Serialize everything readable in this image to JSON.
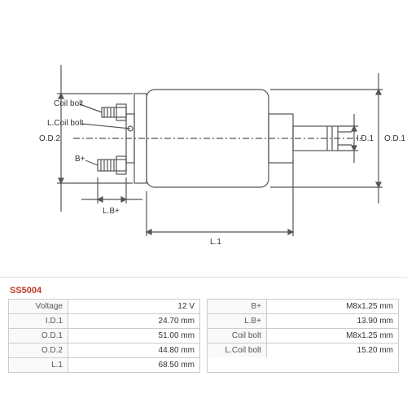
{
  "partNumber": "SS5004",
  "diagram": {
    "labels": {
      "coilBolt": "Coil bolt",
      "lCoilBolt": "L.Coil bolt",
      "bPlus": "B+",
      "lbPlus": "L.B+",
      "l1": "L.1",
      "od1": "O.D.1",
      "od2": "O.D.2",
      "id1": "I.D.1"
    },
    "stroke": "#555555",
    "strokeWidth": 1.2,
    "fill": "#ffffff"
  },
  "specs": {
    "left": [
      {
        "label": "Voltage",
        "value": "12 V"
      },
      {
        "label": "I.D.1",
        "value": "24.70 mm"
      },
      {
        "label": "O.D.1",
        "value": "51.00 mm"
      },
      {
        "label": "O.D.2",
        "value": "44.80 mm"
      },
      {
        "label": "L.1",
        "value": "68.50 mm"
      }
    ],
    "right": [
      {
        "label": "B+",
        "value": "M8x1.25 mm"
      },
      {
        "label": "L.B+",
        "value": "13.90 mm"
      },
      {
        "label": "Coil bolt",
        "value": "M8x1.25 mm"
      },
      {
        "label": "L.Coil bolt",
        "value": "15.20 mm"
      }
    ]
  }
}
